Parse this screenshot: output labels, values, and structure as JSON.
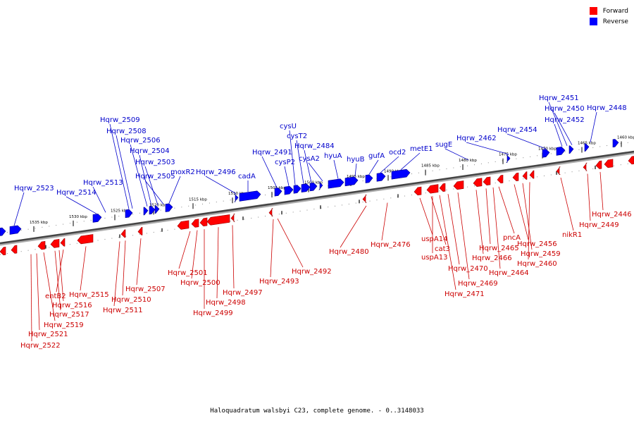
{
  "legend": [
    {
      "label": "Forward",
      "color": "#ff0000"
    },
    {
      "label": "Reverse",
      "color": "#0000ff"
    }
  ],
  "caption": "Haloquadratum walsbyi C23, complete genome. - 0..3148033",
  "ticks": [
    "1535 kbp",
    "1530 kbp",
    "1525 kbp",
    "1520 kbp",
    "1515 kbp",
    "1510 kbp",
    "1505 kbp",
    "1500 kbp",
    "1495 kbp",
    "1490 kbp",
    "1485 kbp",
    "1480 kbp",
    "1475 kbp",
    "1470 kbp",
    "1465 kbp",
    "1460 kbp"
  ],
  "reverse_genes": [
    "Hqrw_2523",
    "Hqrw_2514",
    "Hqrw_2513",
    "Hqrw_2509",
    "Hqrw_2508",
    "Hqrw_2506",
    "Hqrw_2504",
    "Hqrw_2503",
    "Hqrw_2505",
    "moxR2",
    "Hqrw_2496",
    "cadA",
    "Hqrw_2491",
    "cysP2",
    "cysU",
    "cysT2",
    "Hqrw_2484",
    "cysA2",
    "hyuA",
    "hyuB",
    "gufA",
    "ocd2",
    "metE1",
    "sugE",
    "Hqrw_2462",
    "Hqrw_2454",
    "Hqrw_2452",
    "Hqrw_2451",
    "Hqrw_2450",
    "Hqrw_2448"
  ],
  "forward_genes": [
    "Hqrw_2522",
    "Hqrw_2521",
    "Hqrw_2519",
    "Hqrw_2517",
    "Hqrw_2516",
    "entB2",
    "Hqrw_2515",
    "Hqrw_2511",
    "Hqrw_2510",
    "Hqrw_2507",
    "Hqrw_2501",
    "Hqrw_2500",
    "Hqrw_2499",
    "Hqrw_2498",
    "Hqrw_2497",
    "Hqrw_2493",
    "Hqrw_2492",
    "Hqrw_2480",
    "Hqrw_2476",
    "uspA14",
    "cat3",
    "uspA13",
    "Hqrw_2471",
    "Hqrw_2470",
    "Hqrw_2469",
    "Hqrw_2466",
    "Hqrw_2465",
    "Hqrw_2464",
    "pncA",
    "Hqrw_2456",
    "Hqrw_2459",
    "Hqrw_2460",
    "nikR1",
    "Hqrw_2449",
    "Hqrw_2446"
  ]
}
